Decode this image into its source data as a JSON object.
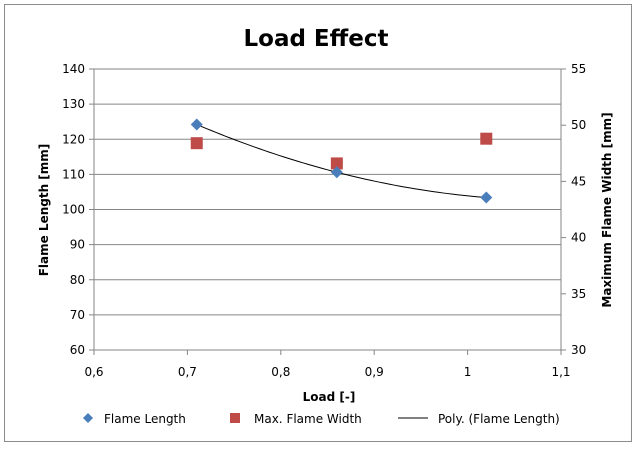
{
  "chart_data": {
    "type": "scatter",
    "title": "Load Effect",
    "xlabel": "Load [-]",
    "ylabel": "Flame Length [mm]",
    "y2label": "Maximum Flame Width [mm]",
    "xlim": [
      0.6,
      1.1
    ],
    "ylim": [
      60,
      140
    ],
    "y2lim": [
      30,
      55
    ],
    "x_ticks": [
      "0,6",
      "0,7",
      "0,8",
      "0,9",
      "1",
      "1,1"
    ],
    "x_tick_values": [
      0.6,
      0.7,
      0.8,
      0.9,
      1.0,
      1.1
    ],
    "y_ticks": [
      "60",
      "70",
      "80",
      "90",
      "100",
      "110",
      "120",
      "130",
      "140"
    ],
    "y_tick_values": [
      60,
      70,
      80,
      90,
      100,
      110,
      120,
      130,
      140
    ],
    "y2_ticks": [
      "30",
      "35",
      "40",
      "45",
      "50",
      "55"
    ],
    "y2_tick_values": [
      30,
      35,
      40,
      45,
      50,
      55
    ],
    "grid": "horizontal",
    "legend_position": "bottom",
    "series": [
      {
        "name": "Flame Length",
        "axis": "left",
        "marker": "diamond",
        "color": "#4a7ebb",
        "x": [
          0.71,
          0.86,
          1.02
        ],
        "y": [
          124.2,
          110.6,
          103.4
        ]
      },
      {
        "name": "Max. Flame Width",
        "axis": "right",
        "marker": "square",
        "color": "#be4b48",
        "x": [
          0.71,
          0.86,
          1.02
        ],
        "y": [
          48.4,
          46.6,
          48.8
        ]
      },
      {
        "name": "Poly. (Flame Length)",
        "axis": "left",
        "marker": "line",
        "color": "#000000",
        "fit": "polynomial-2",
        "x_range": [
          0.71,
          1.02
        ]
      }
    ]
  }
}
